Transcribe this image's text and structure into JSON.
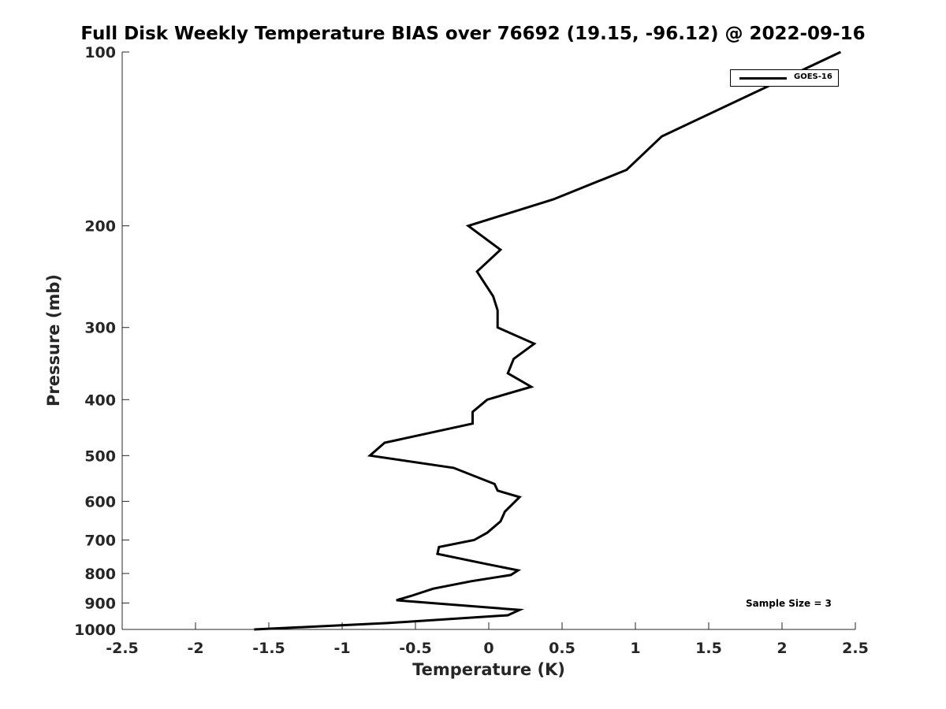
{
  "chart_data": {
    "type": "line",
    "title": "Full Disk Weekly Temperature BIAS over 76692 (19.15, -96.12) @ 2022-09-16",
    "xlabel": "Temperature (K)",
    "ylabel": "Pressure (mb)",
    "xlim": [
      -2.5,
      2.5
    ],
    "ylim": [
      1000,
      100
    ],
    "y_scale": "log",
    "y_reversed": true,
    "grid": false,
    "legend_position": "top-right",
    "x_ticks": [
      "-2.5",
      "-2",
      "-1.5",
      "-1",
      "-0.5",
      "0",
      "0.5",
      "1",
      "1.5",
      "2",
      "2.5"
    ],
    "y_ticks": [
      "100",
      "200",
      "300",
      "400",
      "500",
      "600",
      "700",
      "800",
      "900",
      "1000"
    ],
    "annotation": "Sample Size = 3",
    "series": [
      {
        "name": "GOES-16",
        "color": "#000000",
        "points": [
          {
            "x": 2.4,
            "y": 100
          },
          {
            "x": 1.18,
            "y": 140
          },
          {
            "x": 0.94,
            "y": 160
          },
          {
            "x": 0.44,
            "y": 180
          },
          {
            "x": -0.14,
            "y": 200
          },
          {
            "x": 0.08,
            "y": 220
          },
          {
            "x": -0.08,
            "y": 240
          },
          {
            "x": 0.03,
            "y": 265
          },
          {
            "x": 0.06,
            "y": 280
          },
          {
            "x": 0.06,
            "y": 300
          },
          {
            "x": 0.31,
            "y": 320
          },
          {
            "x": 0.17,
            "y": 340
          },
          {
            "x": 0.13,
            "y": 360
          },
          {
            "x": 0.29,
            "y": 380
          },
          {
            "x": -0.01,
            "y": 400
          },
          {
            "x": -0.11,
            "y": 420
          },
          {
            "x": -0.11,
            "y": 440
          },
          {
            "x": -0.71,
            "y": 475
          },
          {
            "x": -0.81,
            "y": 500
          },
          {
            "x": -0.24,
            "y": 525
          },
          {
            "x": 0.04,
            "y": 560
          },
          {
            "x": 0.06,
            "y": 575
          },
          {
            "x": 0.21,
            "y": 590
          },
          {
            "x": 0.11,
            "y": 625
          },
          {
            "x": 0.08,
            "y": 650
          },
          {
            "x": -0.01,
            "y": 680
          },
          {
            "x": -0.1,
            "y": 700
          },
          {
            "x": -0.34,
            "y": 720
          },
          {
            "x": -0.35,
            "y": 740
          },
          {
            "x": -0.02,
            "y": 770
          },
          {
            "x": 0.2,
            "y": 790
          },
          {
            "x": 0.15,
            "y": 805
          },
          {
            "x": -0.12,
            "y": 825
          },
          {
            "x": -0.38,
            "y": 850
          },
          {
            "x": -0.53,
            "y": 875
          },
          {
            "x": -0.63,
            "y": 890
          },
          {
            "x": -0.39,
            "y": 900
          },
          {
            "x": 0.21,
            "y": 925
          },
          {
            "x": 0.13,
            "y": 945
          },
          {
            "x": -0.69,
            "y": 975
          },
          {
            "x": -1.6,
            "y": 1000
          }
        ]
      }
    ]
  }
}
